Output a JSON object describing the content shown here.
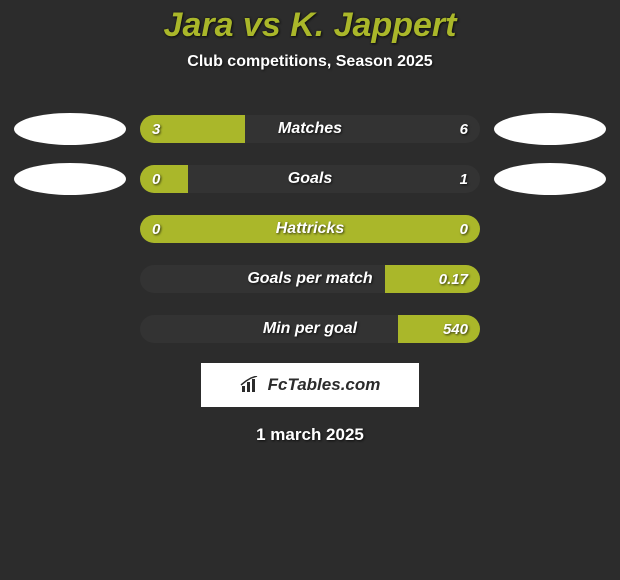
{
  "background_color": "#2c2c2c",
  "title": {
    "text": "Jara vs K. Jappert",
    "color": "#aab72a",
    "fontsize": 34
  },
  "subtitle": {
    "text": "Club competitions, Season 2025",
    "fontsize": 16
  },
  "left_oval_color": "#ffffff",
  "right_oval_color": "#ffffff",
  "bar_track_color": "#333333",
  "bar_fill_color": "#aab72a",
  "bar_label_fontsize": 16,
  "bar_value_fontsize": 15,
  "rows": [
    {
      "label": "Matches",
      "left_value": "3",
      "right_value": "6",
      "left_fill_pct": 31,
      "right_fill_pct": 0,
      "show_left_oval": true,
      "show_right_oval": true
    },
    {
      "label": "Goals",
      "left_value": "0",
      "right_value": "1",
      "left_fill_pct": 14,
      "right_fill_pct": 0,
      "show_left_oval": true,
      "show_right_oval": true
    },
    {
      "label": "Hattricks",
      "left_value": "0",
      "right_value": "0",
      "left_fill_pct": 100,
      "right_fill_pct": 0,
      "show_left_oval": false,
      "show_right_oval": false
    },
    {
      "label": "Goals per match",
      "left_value": "",
      "right_value": "0.17",
      "left_fill_pct": 0,
      "right_fill_pct": 28,
      "show_left_oval": false,
      "show_right_oval": false
    },
    {
      "label": "Min per goal",
      "left_value": "",
      "right_value": "540",
      "left_fill_pct": 0,
      "right_fill_pct": 24,
      "show_left_oval": false,
      "show_right_oval": false
    }
  ],
  "brand": {
    "text": "FcTables.com",
    "fontsize": 17
  },
  "date": {
    "text": "1 march 2025",
    "fontsize": 17
  }
}
